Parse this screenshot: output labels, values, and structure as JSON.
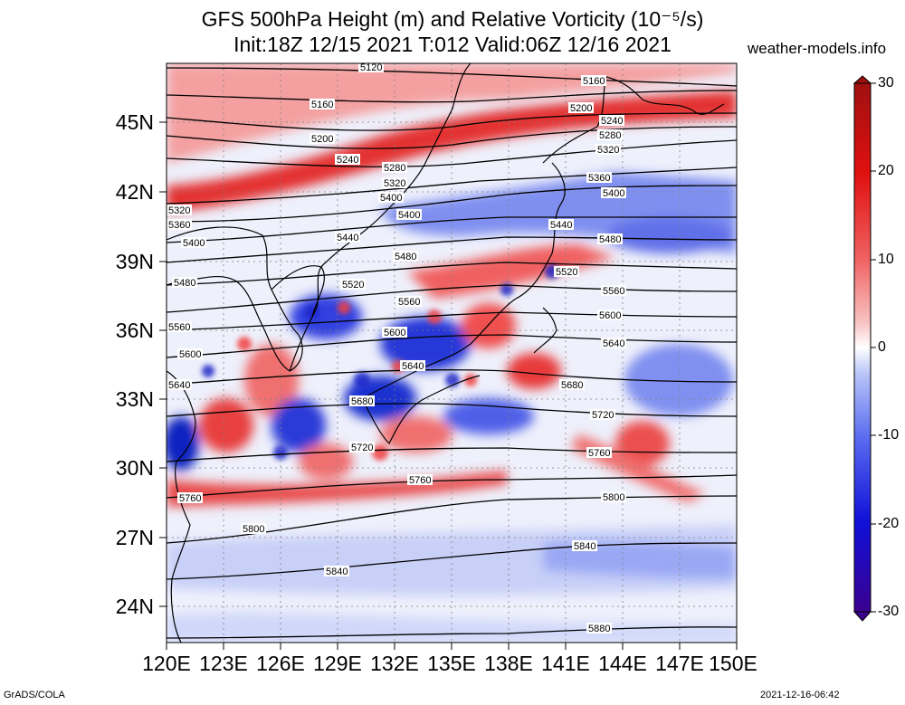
{
  "title_line1": "GFS 500hPa Height (m) and Relative Vorticity (10⁻⁵/s)",
  "title_line2": "Init:18Z 12/15 2021 T:012 Valid:06Z 12/16 2021",
  "site": "weather-models.info",
  "footer_left": "GrADS/COLA",
  "footer_right": "2021-12-16-06:42",
  "lat_labels": [
    "45N",
    "42N",
    "39N",
    "36N",
    "33N",
    "30N",
    "27N",
    "24N"
  ],
  "lon_labels": [
    "120E",
    "123E",
    "126E",
    "129E",
    "132E",
    "135E",
    "138E",
    "141E",
    "144E",
    "147E",
    "150E"
  ],
  "colorbar": {
    "labels": [
      "30",
      "20",
      "10",
      "0",
      "-10",
      "-20",
      "-30"
    ],
    "range": [
      -30,
      30
    ],
    "colors": [
      "#3b0090",
      "#1010d8",
      "#5a6cf0",
      "#b8c4f8",
      "#ffffff",
      "#f8c0c0",
      "#f06060",
      "#e01010",
      "#a01010"
    ]
  },
  "contour_labels": [
    "5120",
    "5160",
    "5200",
    "5240",
    "5280",
    "5320",
    "5360",
    "5400",
    "5440",
    "5480",
    "5520",
    "5560",
    "5600",
    "5640",
    "5680",
    "5720",
    "5760",
    "5800",
    "5840",
    "5880"
  ],
  "map": {
    "lon_range": [
      120,
      150
    ],
    "lat_range": [
      22.5,
      47.5
    ],
    "field": "GFS 500hPa height contours and relative vorticity shading"
  }
}
